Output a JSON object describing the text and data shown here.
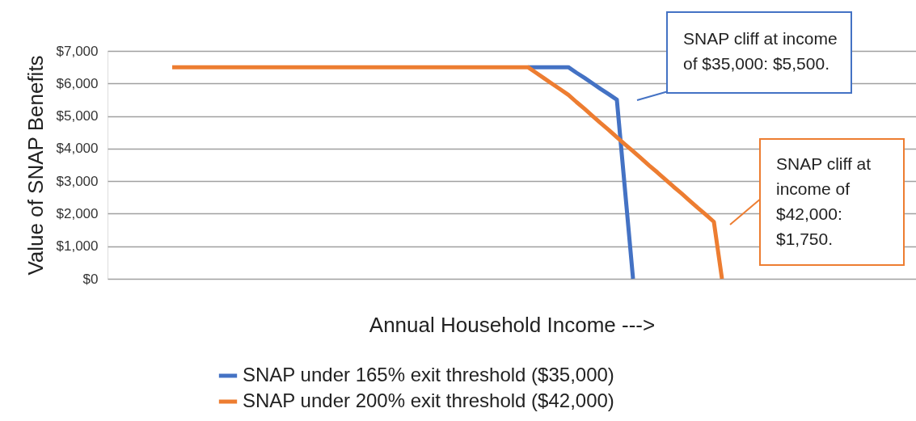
{
  "chart_data": {
    "type": "line",
    "ylabel": "Value of SNAP Benefits",
    "xlabel": "Annual Household Income --->",
    "categories": [
      null,
      null,
      null,
      null,
      null,
      null,
      null,
      null,
      null,
      null,
      null,
      null,
      null,
      null,
      null,
      null,
      null,
      null,
      null,
      null,
      null,
      null,
      null,
      null,
      null,
      null,
      null,
      null,
      null,
      null,
      null,
      null,
      null,
      null,
      null,
      null,
      null,
      null,
      null,
      null,
      null,
      null,
      null,
      null,
      null,
      null,
      null,
      null,
      null,
      null,
      null,
      null,
      null,
      null,
      null,
      null,
      null,
      null,
      null,
      null,
      null,
      null,
      null,
      null,
      null,
      null,
      null,
      null,
      null,
      null,
      null,
      null,
      null,
      null,
      null,
      null,
      null,
      null,
      null,
      null,
      null,
      null,
      null,
      null,
      null,
      null,
      null,
      null,
      null,
      null,
      null,
      null,
      null,
      null,
      null,
      null,
      null,
      null,
      null,
      null,
      null
    ],
    "series": [
      {
        "name": "SNAP under 165% exit threshold ($35,000)",
        "color": "#4472c4",
        "values": [
          null,
          null,
          null,
          null,
          null,
          null,
          null,
          null,
          null,
          null,
          null,
          null,
          null,
          null,
          null,
          null,
          null,
          null,
          null,
          null,
          null,
          null,
          null,
          null,
          null,
          null,
          null,
          null,
          null,
          null,
          null,
          null,
          null,
          null,
          null,
          null,
          null,
          null,
          null,
          null,
          null,
          null,
          null,
          null,
          null,
          null,
          null,
          null,
          null,
          null,
          null,
          null,
          6500,
          6500,
          6500,
          6500,
          6500,
          6500,
          6330,
          6170,
          6000,
          5830,
          5670,
          5500,
          2750,
          0,
          null,
          null,
          null,
          null,
          null,
          null,
          null,
          null,
          null,
          null,
          null,
          null,
          null,
          null,
          null,
          null,
          null,
          null,
          null,
          null,
          null,
          null,
          null,
          null,
          null,
          null,
          null,
          null,
          null,
          null,
          null,
          null,
          null,
          null,
          null
        ]
      },
      {
        "name": "SNAP under 200% exit threshold ($42,000)",
        "color": "#ed7d31",
        "values": [
          null,
          null,
          null,
          null,
          null,
          null,
          null,
          null,
          6500,
          6500,
          6500,
          6500,
          6500,
          6500,
          6500,
          6500,
          6500,
          6500,
          6500,
          6500,
          6500,
          6500,
          6500,
          6500,
          6500,
          6500,
          6500,
          6500,
          6500,
          6500,
          6500,
          6500,
          6500,
          6500,
          6500,
          6500,
          6500,
          6500,
          6500,
          6500,
          6500,
          6500,
          6500,
          6500,
          6500,
          6500,
          6500,
          6500,
          6500,
          6500,
          6500,
          6500,
          6500,
          6330,
          6160,
          5990,
          5820,
          5650,
          5430,
          5220,
          5000,
          4780,
          4570,
          4350,
          4130,
          3920,
          3700,
          3480,
          3270,
          3050,
          2830,
          2620,
          2400,
          2180,
          1970,
          1750,
          0,
          null,
          null,
          null,
          null,
          null,
          null,
          null,
          null,
          null,
          null,
          null,
          null,
          null,
          null,
          null,
          null,
          null,
          null,
          null,
          null,
          null,
          null,
          null,
          null
        ]
      }
    ],
    "ylim": [
      0,
      7000
    ],
    "yticks": [
      {
        "value": 0,
        "label": "$0"
      },
      {
        "value": 1000,
        "label": "$1,000"
      },
      {
        "value": 2000,
        "label": "$2,000"
      },
      {
        "value": 3000,
        "label": "$3,000"
      },
      {
        "value": 4000,
        "label": "$4,000"
      },
      {
        "value": 5000,
        "label": "$5,000"
      },
      {
        "value": 6000,
        "label": "$6,000"
      },
      {
        "value": 7000,
        "label": "$7,000"
      }
    ],
    "grid": "y",
    "legend": "bottom",
    "marker": "none",
    "line_style": "solid",
    "annotations": [
      "SNAP cliff at income\nof $35,000: $5,500.",
      "SNAP cliff at\nincome of\n$42,000:\n$1,750."
    ]
  }
}
